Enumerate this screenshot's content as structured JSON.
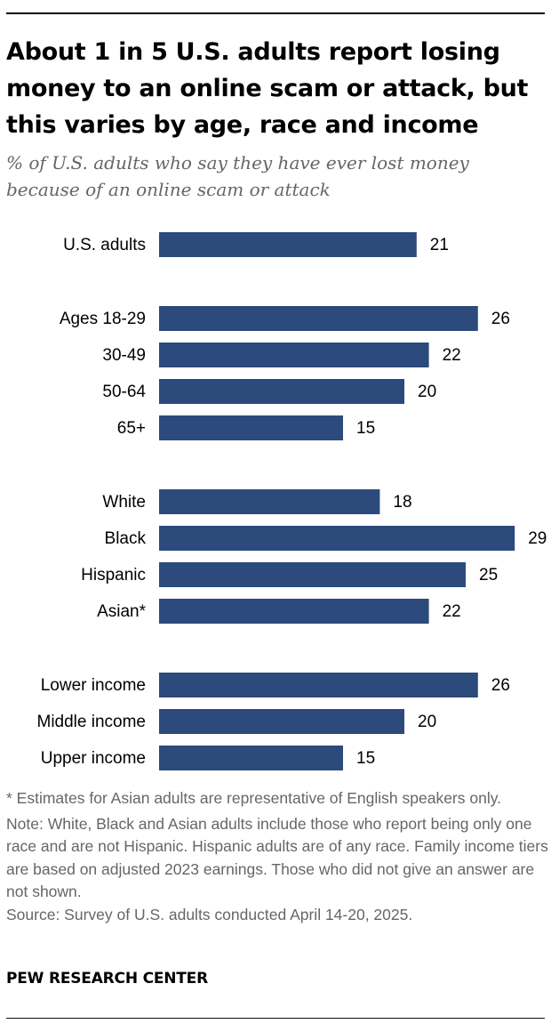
{
  "title": "About 1 in 5 U.S. adults report losing money to an online scam or attack, but this varies by age, race and income",
  "subtitle": "% of U.S. adults who say they have ever lost money because of an online scam or attack",
  "chart_data": {
    "type": "bar",
    "orientation": "horizontal",
    "categories": [
      "U.S. adults",
      "Ages 18-29",
      "30-49",
      "50-64",
      "65+",
      "White",
      "Black",
      "Hispanic",
      "Asian*",
      "Lower income",
      "Middle income",
      "Upper income"
    ],
    "groups": [
      {
        "categories": [
          "U.S. adults"
        ],
        "values": [
          21
        ]
      },
      {
        "categories": [
          "Ages 18-29",
          "30-49",
          "50-64",
          "65+"
        ],
        "values": [
          26,
          22,
          20,
          15
        ]
      },
      {
        "categories": [
          "White",
          "Black",
          "Hispanic",
          "Asian*"
        ],
        "values": [
          18,
          29,
          25,
          22
        ]
      },
      {
        "categories": [
          "Lower income",
          "Middle income",
          "Upper income"
        ],
        "values": [
          26,
          20,
          15
        ]
      }
    ],
    "values": [
      21,
      26,
      22,
      20,
      15,
      18,
      29,
      25,
      22,
      26,
      20,
      15
    ],
    "bar_color": "#2c4a7c",
    "xlim": [
      0,
      29
    ],
    "xlabel": "",
    "ylabel": ""
  },
  "notes": {
    "asterisk": "* Estimates for Asian adults are representative of English speakers only.",
    "note": "Note: White, Black and Asian adults include those who report being only one race and are not Hispanic. Hispanic adults are of any race. Family income tiers are based on adjusted 2023 earnings. Those who did not give an answer are not shown.",
    "source": "Source: Survey of U.S. adults conducted April 14-20, 2025."
  },
  "brand": "PEW RESEARCH CENTER"
}
